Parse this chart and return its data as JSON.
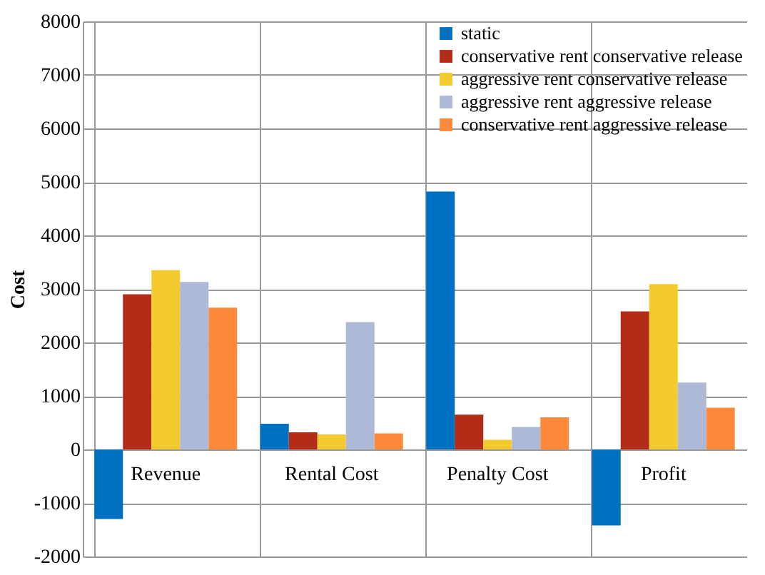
{
  "chart_data": {
    "type": "bar",
    "ylabel": "Cost",
    "categories": [
      "Revenue",
      "Rental Cost",
      "Penalty Cost",
      "Profit"
    ],
    "series": [
      {
        "name": "static",
        "color": "#0070c0",
        "values": [
          -1300,
          480,
          4820,
          -1420
        ]
      },
      {
        "name": "conservative rent conservative release",
        "color": "#b22c18",
        "values": [
          2900,
          320,
          650,
          2580
        ]
      },
      {
        "name": "aggressive rent conservative release",
        "color": "#f4cb2f",
        "values": [
          3350,
          280,
          180,
          3090
        ]
      },
      {
        "name": "aggressive rent aggressive release",
        "color": "#adb9d6",
        "values": [
          3130,
          2380,
          420,
          1250
        ]
      },
      {
        "name": "conservative rent aggressive release",
        "color": "#fd8a3a",
        "values": [
          2650,
          300,
          600,
          780
        ]
      }
    ],
    "ylim": [
      -2000,
      8000
    ],
    "yticks": [
      -2000,
      -1000,
      0,
      1000,
      2000,
      3000,
      4000,
      5000,
      6000,
      7000,
      8000
    ],
    "grid": true,
    "legend": "top right"
  }
}
